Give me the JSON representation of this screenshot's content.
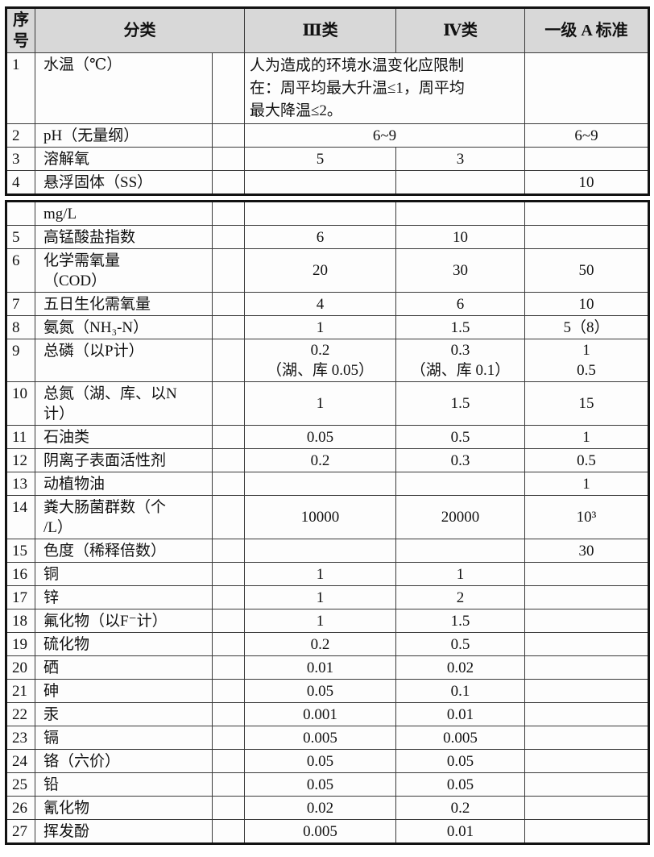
{
  "document": {
    "title_hint": "水质标准对比表",
    "colors": {
      "header_bg": "#d8d8d8",
      "border_inner": "#3a3a3a",
      "border_outer": "#121212",
      "text": "#111111",
      "page_bg": "#ffffff"
    },
    "header": {
      "seq": "序\n号",
      "category": "分类",
      "class3": "Ⅲ类",
      "class4": "Ⅳ类",
      "gradeA": "一级 A 标准"
    },
    "upper_rows": [
      {
        "no": "1",
        "name": "水温（℃）",
        "span2": "人为造成的环境水温变化应限制\n在：周平均最大升温≤1，周平均\n最大降温≤2。",
        "span2_align": "left",
        "a": ""
      },
      {
        "no": "2",
        "name": "pH（无量纲）",
        "span2": "6~9",
        "span2_align": "center",
        "a": "6~9"
      },
      {
        "no": "3",
        "name": "溶解氧",
        "iii": "5",
        "iv": "3",
        "a": ""
      },
      {
        "no": "4",
        "name": "悬浮固体（SS）",
        "iii": "",
        "iv": "",
        "a": "10"
      }
    ],
    "lower_rows": [
      {
        "no": "",
        "name": "mg/L",
        "iii": "",
        "iv": "",
        "a": ""
      },
      {
        "no": "5",
        "name": "高锰酸盐指数",
        "iii": "6",
        "iv": "10",
        "a": ""
      },
      {
        "no": "6",
        "name": "化学需氧量\n（COD）",
        "iii": "20",
        "iv": "30",
        "a": "50"
      },
      {
        "no": "7",
        "name": "五日生化需氧量",
        "iii": "4",
        "iv": "6",
        "a": "10"
      },
      {
        "no": "8",
        "name": "氨氮（NH₃-N）",
        "iii": "1",
        "iv": "1.5",
        "a": "5（8）"
      },
      {
        "no": "9",
        "name": "总磷（以P计）",
        "iii": "0.2\n（湖、库 0.05）",
        "iv": "0.3\n（湖、库 0.1）",
        "a": "1\n0.5"
      },
      {
        "no": "10",
        "name": "总氮（湖、库、以N\n计）",
        "iii": "1",
        "iv": "1.5",
        "a": "15"
      },
      {
        "no": "11",
        "name": "石油类",
        "iii": "0.05",
        "iv": "0.5",
        "a": "1"
      },
      {
        "no": "12",
        "name": "阴离子表面活性剂",
        "iii": "0.2",
        "iv": "0.3",
        "a": "0.5"
      },
      {
        "no": "13",
        "name": "动植物油",
        "iii": "",
        "iv": "",
        "a": "1"
      },
      {
        "no": "14",
        "name": "粪大肠菌群数（个\n/L）",
        "iii": "10000",
        "iv": "20000",
        "a": "10³"
      },
      {
        "no": "15",
        "name": "色度（稀释倍数）",
        "iii": "",
        "iv": "",
        "a": "30"
      },
      {
        "no": "16",
        "name": "铜",
        "iii": "1",
        "iv": "1",
        "a": ""
      },
      {
        "no": "17",
        "name": "锌",
        "iii": "1",
        "iv": "2",
        "a": ""
      },
      {
        "no": "18",
        "name": "氟化物（以F⁻计）",
        "iii": "1",
        "iv": "1.5",
        "a": ""
      },
      {
        "no": "19",
        "name": "硫化物",
        "iii": "0.2",
        "iv": "0.5",
        "a": ""
      },
      {
        "no": "20",
        "name": "硒",
        "iii": "0.01",
        "iv": "0.02",
        "a": ""
      },
      {
        "no": "21",
        "name": "砷",
        "iii": "0.05",
        "iv": "0.1",
        "a": ""
      },
      {
        "no": "22",
        "name": "汞",
        "iii": "0.001",
        "iv": "0.01",
        "a": ""
      },
      {
        "no": "23",
        "name": "镉",
        "iii": "0.005",
        "iv": "0.005",
        "a": ""
      },
      {
        "no": "24",
        "name": "铬（六价）",
        "iii": "0.05",
        "iv": "0.05",
        "a": ""
      },
      {
        "no": "25",
        "name": "铅",
        "iii": "0.05",
        "iv": "0.05",
        "a": ""
      },
      {
        "no": "26",
        "name": "氰化物",
        "iii": "0.02",
        "iv": "0.2",
        "a": ""
      },
      {
        "no": "27",
        "name": "挥发酚",
        "iii": "0.005",
        "iv": "0.01",
        "a": ""
      }
    ]
  }
}
